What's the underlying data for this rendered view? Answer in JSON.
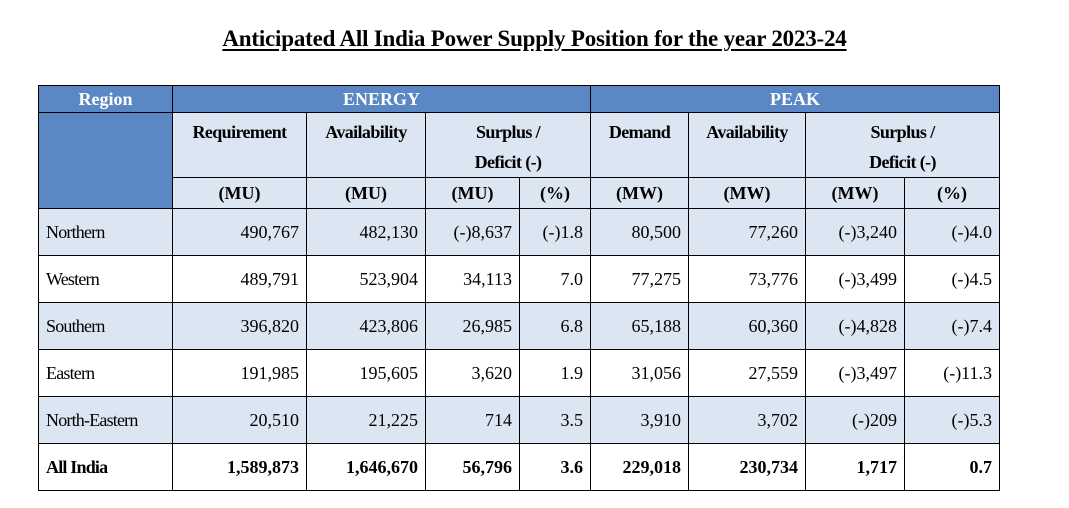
{
  "title": "Anticipated All India Power Supply Position for the year 2023-24",
  "headers": {
    "region": "Region",
    "energy": "ENERGY",
    "peak": "PEAK",
    "requirement": "Requirement",
    "availability": "Availability",
    "surplus_line1": "Surplus /",
    "surplus_line2": "Deficit (-)",
    "demand": "Demand",
    "peak_availability": "Availability",
    "units": {
      "req": "(MU)",
      "avail": "(MU)",
      "surplus_mu": "(MU)",
      "surplus_pct": "(%)",
      "demand": "(MW)",
      "peak_avail": "(MW)",
      "surplus_mw": "(MW)",
      "peak_pct": "(%)"
    }
  },
  "rows": [
    {
      "region": "Northern",
      "req": "490,767",
      "avail": "482,130",
      "surplus": "(-)8,637",
      "surplus_pct": "(-)1.8",
      "demand": "80,500",
      "peak_avail": "77,260",
      "peak_surplus": "(-)3,240",
      "peak_pct": "(-)4.0"
    },
    {
      "region": "Western",
      "req": "489,791",
      "avail": "523,904",
      "surplus": "34,113",
      "surplus_pct": "7.0",
      "demand": "77,275",
      "peak_avail": "73,776",
      "peak_surplus": "(-)3,499",
      "peak_pct": "(-)4.5"
    },
    {
      "region": "Southern",
      "req": "396,820",
      "avail": "423,806",
      "surplus": "26,985",
      "surplus_pct": "6.8",
      "demand": "65,188",
      "peak_avail": "60,360",
      "peak_surplus": "(-)4,828",
      "peak_pct": "(-)7.4"
    },
    {
      "region": "Eastern",
      "req": "191,985",
      "avail": "195,605",
      "surplus": "3,620",
      "surplus_pct": "1.9",
      "demand": "31,056",
      "peak_avail": "27,559",
      "peak_surplus": "(-)3,497",
      "peak_pct": "(-)11.3"
    },
    {
      "region": "North-Eastern",
      "req": "20,510",
      "avail": "21,225",
      "surplus": "714",
      "surplus_pct": "3.5",
      "demand": "3,910",
      "peak_avail": "3,702",
      "peak_surplus": "(-)209",
      "peak_pct": "(-)5.3"
    }
  ],
  "total": {
    "region": "All India",
    "req": "1,589,873",
    "avail": "1,646,670",
    "surplus": "56,796",
    "surplus_pct": "3.6",
    "demand": "229,018",
    "peak_avail": "230,734",
    "peak_surplus": "1,717",
    "peak_pct": "0.7"
  },
  "colors": {
    "header_blue": "#5b87c5",
    "band_blue": "#dce5f2"
  }
}
